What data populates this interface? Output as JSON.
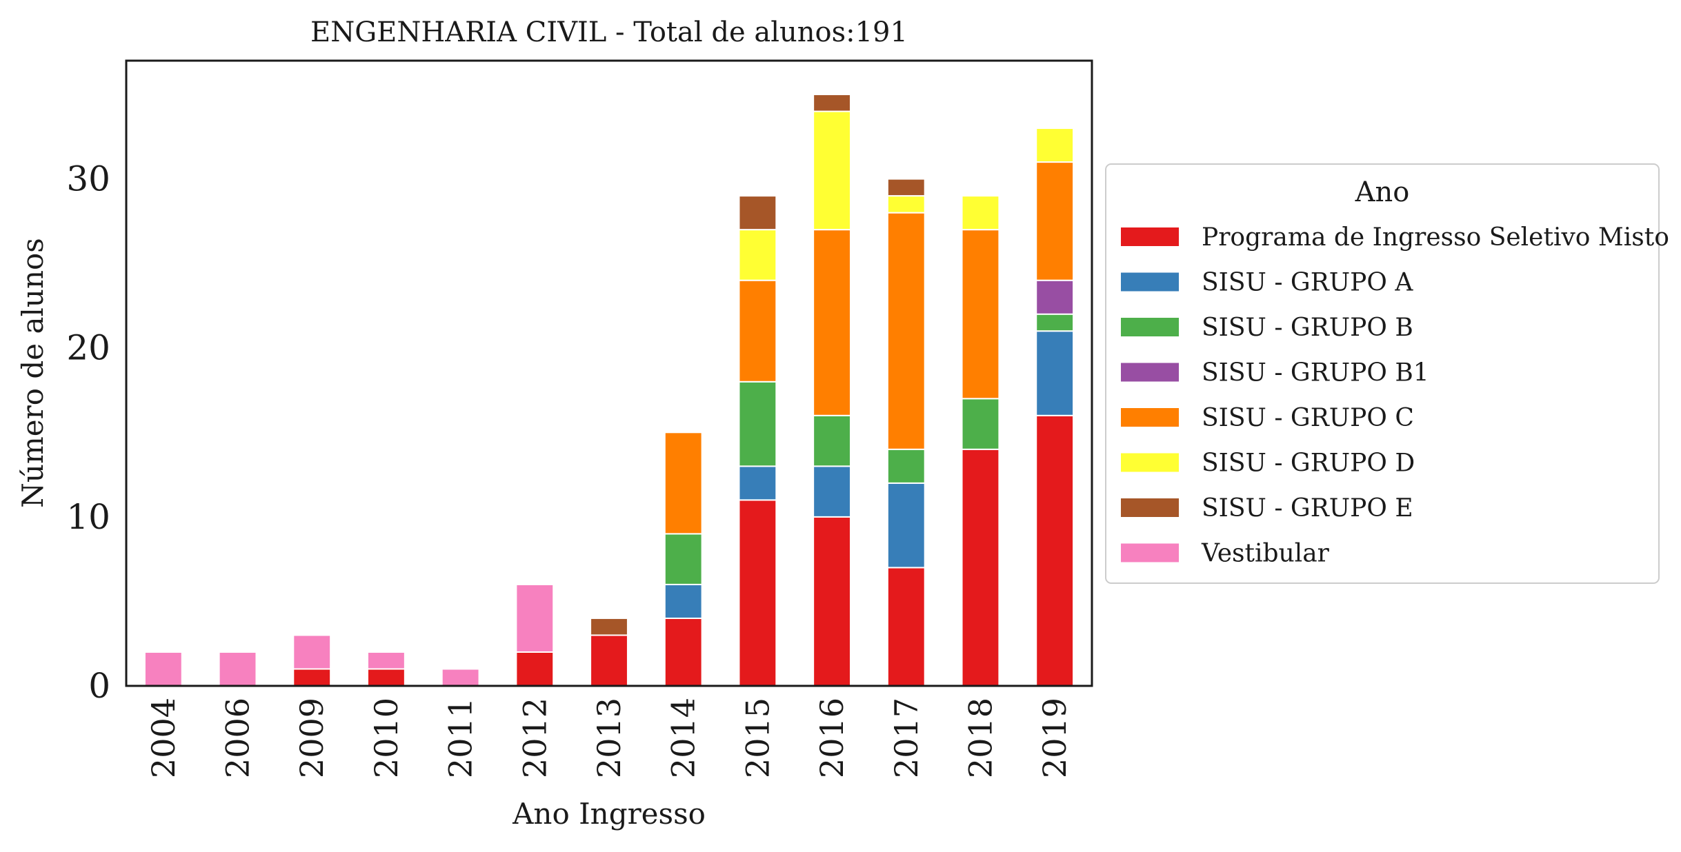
{
  "chart_data": {
    "type": "bar",
    "stacked": true,
    "title": "ENGENHARIA CIVIL - Total de alunos:191",
    "xlabel": "Ano Ingresso",
    "ylabel": "Número de alunos",
    "ylim": [
      0,
      37
    ],
    "yticks": [
      0,
      10,
      20,
      30
    ],
    "grid": false,
    "legend": {
      "title": "Ano",
      "placement": "right-outside"
    },
    "categories": [
      "2004",
      "2006",
      "2009",
      "2010",
      "2011",
      "2012",
      "2013",
      "2014",
      "2015",
      "2016",
      "2017",
      "2018",
      "2019"
    ],
    "series": [
      {
        "name": "Programa de Ingresso Seletivo Misto",
        "color": "#e41a1c",
        "values": [
          0,
          0,
          1,
          1,
          0,
          2,
          3,
          4,
          11,
          10,
          7,
          14,
          16
        ]
      },
      {
        "name": "SISU - GRUPO A",
        "color": "#377eb8",
        "values": [
          0,
          0,
          0,
          0,
          0,
          0,
          0,
          2,
          2,
          3,
          5,
          0,
          5
        ]
      },
      {
        "name": "SISU - GRUPO B",
        "color": "#4daf4a",
        "values": [
          0,
          0,
          0,
          0,
          0,
          0,
          0,
          3,
          5,
          3,
          2,
          3,
          1
        ]
      },
      {
        "name": "SISU - GRUPO B1",
        "color": "#984ea3",
        "values": [
          0,
          0,
          0,
          0,
          0,
          0,
          0,
          0,
          0,
          0,
          0,
          0,
          2
        ]
      },
      {
        "name": "SISU - GRUPO C",
        "color": "#ff7f00",
        "values": [
          0,
          0,
          0,
          0,
          0,
          0,
          0,
          6,
          6,
          11,
          14,
          10,
          7
        ]
      },
      {
        "name": "SISU - GRUPO D",
        "color": "#ffff33",
        "values": [
          0,
          0,
          0,
          0,
          0,
          0,
          0,
          0,
          3,
          7,
          1,
          2,
          2
        ]
      },
      {
        "name": "SISU - GRUPO E",
        "color": "#a65628",
        "values": [
          0,
          0,
          0,
          0,
          0,
          0,
          1,
          0,
          2,
          1,
          1,
          0,
          0
        ]
      },
      {
        "name": "Vestibular",
        "color": "#f781bf",
        "values": [
          2,
          2,
          2,
          1,
          1,
          4,
          0,
          0,
          0,
          0,
          0,
          0,
          0
        ]
      }
    ]
  }
}
